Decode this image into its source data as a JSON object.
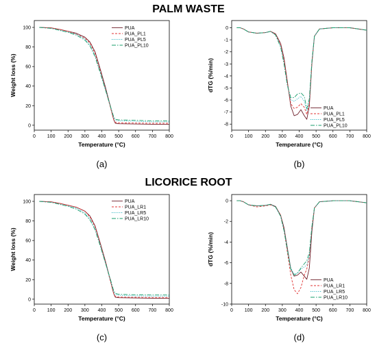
{
  "sections": {
    "top_title": "PALM WASTE",
    "bottom_title": "LICORICE ROOT"
  },
  "chart_data": [
    {
      "panel_label": "(a)",
      "type": "line",
      "title": "",
      "xlabel": "Temperature (°C)",
      "ylabel": "Weight loss (%)",
      "xlim": [
        0,
        800
      ],
      "ylim": [
        -5,
        107
      ],
      "xticks": [
        0,
        100,
        200,
        300,
        400,
        500,
        600,
        700,
        800
      ],
      "yticks": [
        0,
        20,
        40,
        60,
        80,
        100
      ],
      "legend_position": "top-right",
      "series": [
        {
          "name": "PUA",
          "color": "#6e1f2a",
          "dash": "solid",
          "x": [
            30,
            100,
            150,
            200,
            250,
            300,
            330,
            360,
            390,
            420,
            450,
            470,
            480,
            500,
            600,
            700,
            800
          ],
          "y": [
            100,
            99.5,
            98,
            96,
            94,
            90,
            85,
            75,
            58,
            40,
            20,
            6,
            2,
            1.5,
            1.2,
            1.0,
            1.0
          ]
        },
        {
          "name": "PUA_PL1",
          "color": "#e03030",
          "dash": "3,2",
          "x": [
            30,
            100,
            150,
            200,
            250,
            300,
            330,
            360,
            390,
            420,
            450,
            470,
            480,
            500,
            600,
            700,
            800
          ],
          "y": [
            100,
            99.5,
            98,
            96,
            93,
            89,
            84,
            73,
            56,
            38,
            19,
            6,
            3,
            2.5,
            2.2,
            2.0,
            2.0
          ]
        },
        {
          "name": "PUA_PL5",
          "color": "#2bb3c0",
          "dash": "1.2,1.6",
          "x": [
            30,
            100,
            150,
            200,
            250,
            300,
            330,
            360,
            390,
            420,
            450,
            470,
            480,
            500,
            600,
            700,
            800
          ],
          "y": [
            100,
            99,
            97,
            95,
            93,
            88,
            82,
            71,
            55,
            38,
            20,
            8,
            5,
            4.5,
            4.0,
            3.5,
            3.5
          ]
        },
        {
          "name": "PUA_PL10",
          "color": "#159c6a",
          "dash": "6,2,1.5,2",
          "x": [
            30,
            100,
            150,
            200,
            250,
            300,
            330,
            360,
            390,
            420,
            450,
            470,
            480,
            500,
            600,
            700,
            800
          ],
          "y": [
            100,
            99,
            97,
            95,
            92,
            87,
            81,
            70,
            54,
            37,
            20,
            9,
            6,
            5.5,
            5.0,
            4.5,
            4.5
          ]
        }
      ]
    },
    {
      "panel_label": "(b)",
      "type": "line",
      "title": "",
      "xlabel": "Temperature (°C)",
      "ylabel": "dTG (%/min)",
      "xlim": [
        0,
        800
      ],
      "ylim": [
        -8.5,
        0.6
      ],
      "xticks": [
        0,
        100,
        200,
        300,
        400,
        500,
        600,
        700,
        800
      ],
      "yticks": [
        0,
        -1,
        -2,
        -3,
        -4,
        -5,
        -6,
        -7,
        -8
      ],
      "legend_position": "bottom-right",
      "series": [
        {
          "name": "PUA",
          "color": "#6e1f2a",
          "dash": "solid",
          "x": [
            30,
            50,
            70,
            100,
            150,
            200,
            230,
            260,
            290,
            310,
            330,
            350,
            370,
            390,
            410,
            430,
            445,
            460,
            475,
            490,
            520,
            600,
            700,
            800
          ],
          "y": [
            0,
            0,
            -0.1,
            -0.35,
            -0.45,
            -0.4,
            -0.3,
            -0.5,
            -1.3,
            -2.5,
            -4.5,
            -6.5,
            -7.3,
            -7.2,
            -6.8,
            -7.3,
            -7.6,
            -6.5,
            -3.0,
            -0.7,
            -0.1,
            0,
            0,
            -0.2
          ]
        },
        {
          "name": "PUA_PL1",
          "color": "#e03030",
          "dash": "3,2",
          "x": [
            30,
            50,
            70,
            100,
            150,
            200,
            230,
            260,
            290,
            310,
            330,
            350,
            370,
            390,
            410,
            430,
            445,
            460,
            475,
            490,
            520,
            600,
            700,
            800
          ],
          "y": [
            0,
            0,
            -0.1,
            -0.35,
            -0.45,
            -0.4,
            -0.3,
            -0.55,
            -1.4,
            -2.7,
            -4.6,
            -6.3,
            -6.7,
            -6.6,
            -6.3,
            -6.6,
            -7.2,
            -6.2,
            -2.9,
            -0.7,
            -0.1,
            0,
            0,
            -0.2
          ]
        },
        {
          "name": "PUA_PL5",
          "color": "#2bb3c0",
          "dash": "1.2,1.6",
          "x": [
            30,
            50,
            70,
            100,
            150,
            200,
            230,
            260,
            290,
            310,
            330,
            350,
            370,
            390,
            410,
            430,
            445,
            460,
            475,
            490,
            520,
            600,
            700,
            800
          ],
          "y": [
            0,
            0,
            -0.1,
            -0.35,
            -0.45,
            -0.4,
            -0.3,
            -0.6,
            -1.5,
            -2.9,
            -4.8,
            -6.0,
            -6.1,
            -5.9,
            -5.7,
            -6.1,
            -6.9,
            -6.0,
            -2.8,
            -0.7,
            -0.1,
            0,
            0,
            -0.2
          ]
        },
        {
          "name": "PUA_PL10",
          "color": "#159c6a",
          "dash": "6,2,1.5,2",
          "x": [
            30,
            50,
            70,
            100,
            150,
            200,
            230,
            260,
            290,
            310,
            330,
            350,
            370,
            390,
            410,
            430,
            445,
            460,
            475,
            490,
            520,
            600,
            700,
            800
          ],
          "y": [
            0,
            0,
            -0.1,
            -0.35,
            -0.45,
            -0.4,
            -0.3,
            -0.6,
            -1.6,
            -3.0,
            -4.8,
            -5.8,
            -5.8,
            -5.5,
            -5.4,
            -5.7,
            -6.7,
            -5.9,
            -2.8,
            -0.7,
            -0.1,
            0,
            0,
            -0.2
          ]
        }
      ]
    },
    {
      "panel_label": "(c)",
      "type": "line",
      "title": "",
      "xlabel": "Temperature (°C)",
      "ylabel": "Weight loss (%)",
      "xlim": [
        0,
        800
      ],
      "ylim": [
        -5,
        107
      ],
      "xticks": [
        0,
        100,
        200,
        300,
        400,
        500,
        600,
        700,
        800
      ],
      "yticks": [
        0,
        20,
        40,
        60,
        80,
        100
      ],
      "legend_position": "top-right",
      "series": [
        {
          "name": "PUA",
          "color": "#6e1f2a",
          "dash": "solid",
          "x": [
            30,
            100,
            150,
            200,
            250,
            300,
            330,
            360,
            390,
            420,
            450,
            470,
            480,
            500,
            600,
            700,
            800
          ],
          "y": [
            100,
            99.5,
            98,
            96,
            94,
            90,
            85,
            75,
            58,
            40,
            20,
            6,
            2,
            1.5,
            1.2,
            1.0,
            1.0
          ]
        },
        {
          "name": "PUA_LR1",
          "color": "#e03030",
          "dash": "3,2",
          "x": [
            30,
            100,
            150,
            200,
            250,
            300,
            330,
            360,
            390,
            420,
            450,
            470,
            480,
            500,
            600,
            700,
            800
          ],
          "y": [
            100,
            99.5,
            98,
            96,
            94,
            90,
            84,
            74,
            57,
            39,
            19,
            6,
            3,
            2.2,
            2.0,
            1.8,
            1.8
          ]
        },
        {
          "name": "PUA_LR5",
          "color": "#2bb3c0",
          "dash": "1.2,1.6",
          "x": [
            30,
            100,
            150,
            200,
            250,
            300,
            330,
            360,
            390,
            420,
            450,
            470,
            480,
            500,
            600,
            700,
            800
          ],
          "y": [
            100,
            99,
            97,
            95,
            93,
            88,
            82,
            72,
            56,
            38,
            20,
            8,
            5,
            4.0,
            3.5,
            3.2,
            3.2
          ]
        },
        {
          "name": "PUA_LR10",
          "color": "#159c6a",
          "dash": "6,2,1.5,2",
          "x": [
            30,
            100,
            150,
            200,
            250,
            300,
            330,
            360,
            390,
            420,
            450,
            470,
            480,
            500,
            600,
            700,
            800
          ],
          "y": [
            100,
            99,
            97,
            95,
            92,
            87,
            81,
            71,
            55,
            38,
            21,
            9,
            6,
            5.0,
            4.6,
            4.3,
            4.3
          ]
        }
      ]
    },
    {
      "panel_label": "(d)",
      "type": "line",
      "title": "",
      "xlabel": "Temperature (°C)",
      "ylabel": "dTG (%/min)",
      "xlim": [
        0,
        800
      ],
      "ylim": [
        -10,
        0.6
      ],
      "xticks": [
        0,
        100,
        200,
        300,
        400,
        500,
        600,
        700,
        800
      ],
      "yticks": [
        0,
        -2,
        -4,
        -6,
        -8,
        -10
      ],
      "legend_position": "bottom-right",
      "series": [
        {
          "name": "PUA",
          "color": "#6e1f2a",
          "dash": "solid",
          "x": [
            30,
            50,
            70,
            100,
            150,
            200,
            230,
            260,
            290,
            310,
            330,
            350,
            370,
            390,
            410,
            430,
            445,
            460,
            475,
            490,
            520,
            600,
            700,
            800
          ],
          "y": [
            0,
            0,
            -0.1,
            -0.4,
            -0.5,
            -0.45,
            -0.35,
            -0.55,
            -1.4,
            -2.6,
            -4.6,
            -6.6,
            -7.3,
            -7.2,
            -6.9,
            -7.3,
            -7.6,
            -6.5,
            -3.0,
            -0.7,
            -0.1,
            0,
            0,
            -0.2
          ]
        },
        {
          "name": "PUA_LR1",
          "color": "#e03030",
          "dash": "3,2",
          "x": [
            30,
            50,
            70,
            100,
            150,
            200,
            230,
            260,
            290,
            310,
            330,
            350,
            370,
            390,
            410,
            430,
            445,
            460,
            475,
            490,
            520,
            600,
            700,
            800
          ],
          "y": [
            0,
            0,
            -0.1,
            -0.4,
            -0.6,
            -0.5,
            -0.4,
            -0.6,
            -1.4,
            -2.8,
            -5.0,
            -7.2,
            -8.6,
            -9.0,
            -8.4,
            -7.2,
            -6.6,
            -5.4,
            -2.6,
            -0.7,
            -0.1,
            0,
            0,
            -0.2
          ]
        },
        {
          "name": "PUA_LR5",
          "color": "#2bb3c0",
          "dash": "1.2,1.6",
          "x": [
            30,
            50,
            70,
            100,
            150,
            200,
            230,
            260,
            290,
            310,
            330,
            350,
            370,
            390,
            410,
            430,
            445,
            460,
            475,
            490,
            520,
            600,
            700,
            800
          ],
          "y": [
            0,
            0,
            -0.1,
            -0.4,
            -0.5,
            -0.45,
            -0.35,
            -0.6,
            -1.5,
            -2.8,
            -4.7,
            -6.5,
            -7.1,
            -7.0,
            -6.6,
            -6.4,
            -6.2,
            -5.3,
            -2.6,
            -0.7,
            -0.1,
            0,
            0,
            -0.2
          ]
        },
        {
          "name": "PUA_LR10",
          "color": "#159c6a",
          "dash": "6,2,1.5,2",
          "x": [
            30,
            50,
            70,
            100,
            150,
            200,
            230,
            260,
            290,
            310,
            330,
            350,
            370,
            390,
            410,
            430,
            445,
            460,
            475,
            490,
            520,
            600,
            700,
            800
          ],
          "y": [
            0,
            0,
            -0.1,
            -0.4,
            -0.5,
            -0.45,
            -0.35,
            -0.6,
            -1.5,
            -2.9,
            -4.8,
            -6.6,
            -7.2,
            -7.0,
            -6.5,
            -6.1,
            -5.8,
            -5.0,
            -2.5,
            -0.7,
            -0.1,
            0,
            0,
            -0.2
          ]
        }
      ]
    }
  ]
}
